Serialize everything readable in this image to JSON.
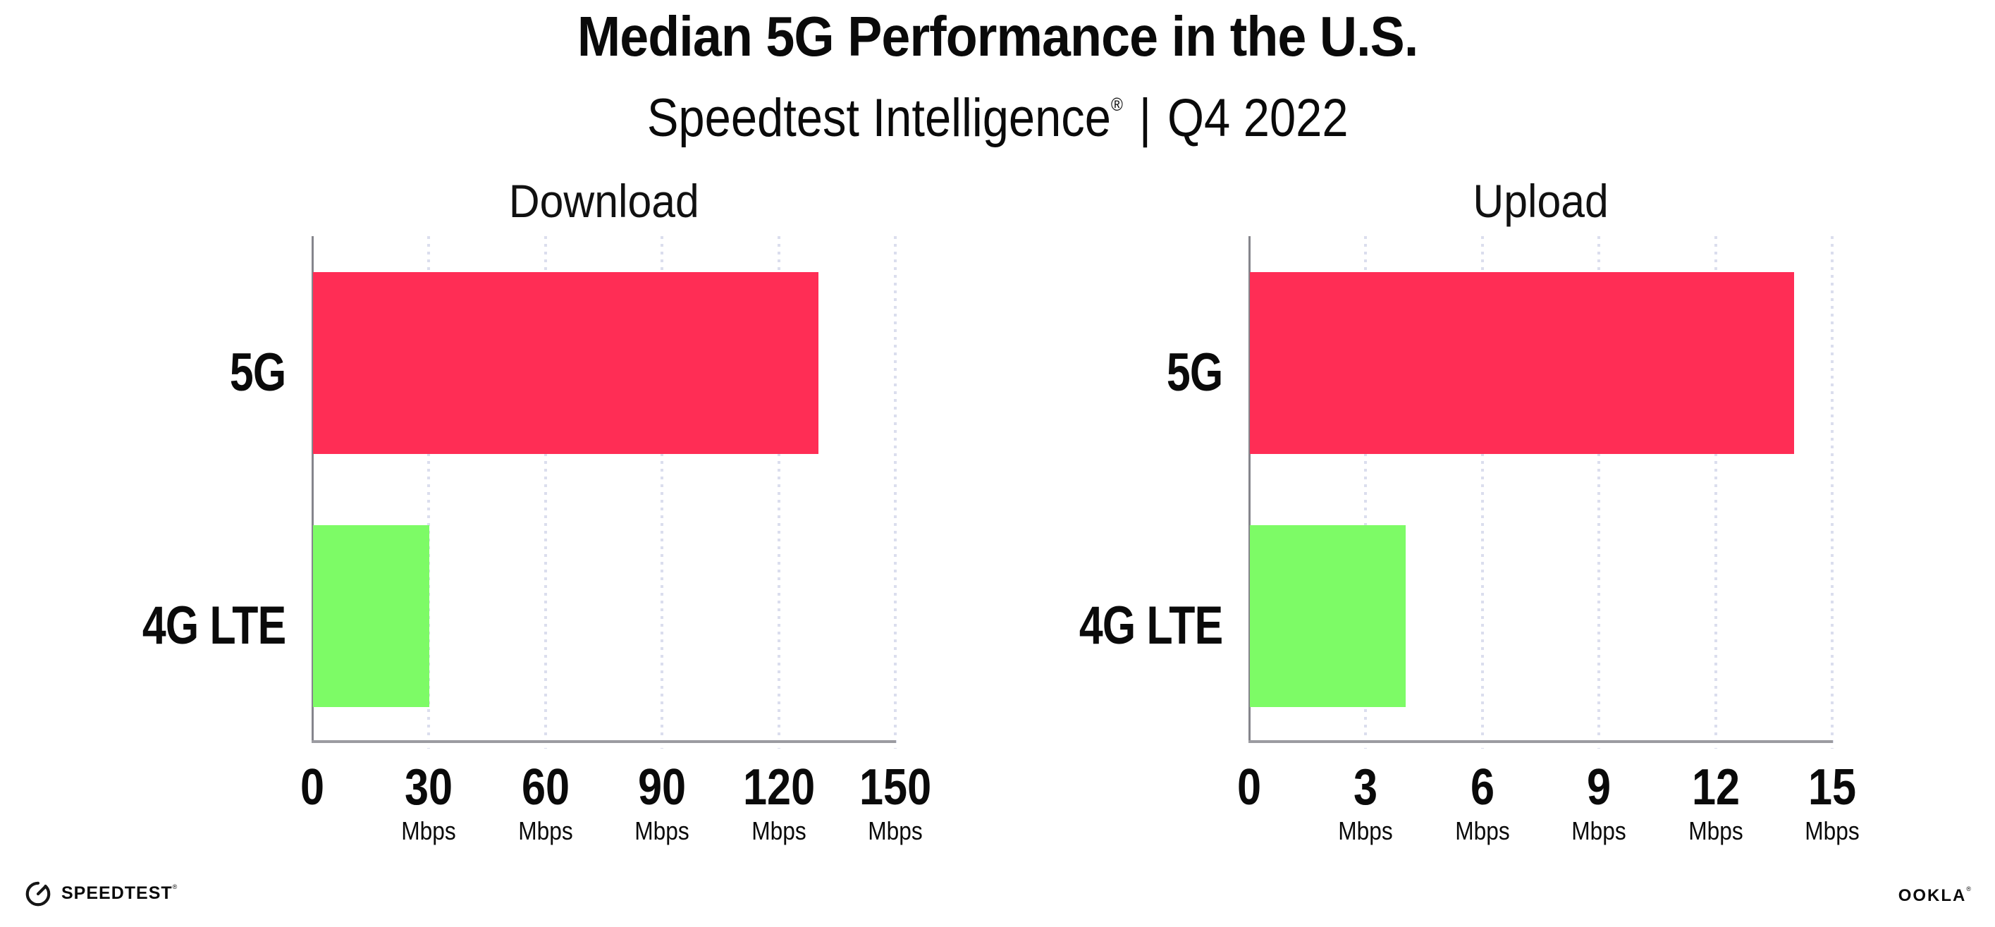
{
  "title": "Median 5G Performance in the U.S.",
  "subtitle": {
    "product": "Speedtest Intelligence",
    "registered_mark": "®",
    "separator": "|",
    "period": "Q4 2022"
  },
  "chart_data": [
    {
      "type": "bar",
      "orientation": "horizontal",
      "title": "Download",
      "categories": [
        "5G",
        "4G LTE"
      ],
      "values": [
        130,
        30
      ],
      "unit": "Mbps",
      "xlim": [
        0,
        150
      ],
      "xticks": [
        0,
        30,
        60,
        90,
        120,
        150
      ],
      "grid": "dotted-vertical",
      "legend": "none",
      "bar_colors": [
        "#FF2D55",
        "#7DFB66"
      ]
    },
    {
      "type": "bar",
      "orientation": "horizontal",
      "title": "Upload",
      "categories": [
        "5G",
        "4G LTE"
      ],
      "values": [
        14,
        4
      ],
      "unit": "Mbps",
      "xlim": [
        0,
        15
      ],
      "xticks": [
        0,
        3,
        6,
        9,
        12,
        15
      ],
      "grid": "dotted-vertical",
      "legend": "none",
      "bar_colors": [
        "#FF2D55",
        "#7DFB66"
      ]
    }
  ],
  "colors": {
    "bar_5g": "#FF2D55",
    "bar_4g_lte": "#7DFB66",
    "gridline": "#dbdeee",
    "x_axis": "#9b9ba1",
    "y_axis": "#85858c",
    "text": "#0a0a0a",
    "background": "#ffffff"
  },
  "footer": {
    "speedtest": {
      "label": "SPEEDTEST",
      "mark": "®"
    },
    "ookla": {
      "label": "OOKLA",
      "mark": "®"
    }
  }
}
